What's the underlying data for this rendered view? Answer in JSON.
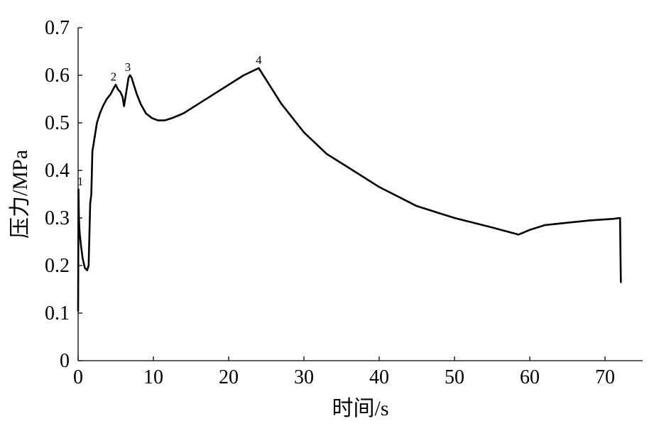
{
  "chart_data": {
    "type": "line",
    "title": "",
    "xlabel": "时间/s",
    "ylabel": "压力/MPa",
    "xlim": [
      0,
      75
    ],
    "ylim": [
      0,
      0.7
    ],
    "xticks": [
      0,
      10,
      20,
      30,
      40,
      50,
      60,
      70
    ],
    "yticks": [
      0,
      0.1,
      0.2,
      0.3,
      0.4,
      0.5,
      0.6,
      0.7
    ],
    "xtick_labels": [
      "0",
      "10",
      "20",
      "30",
      "40",
      "50",
      "60",
      "70"
    ],
    "ytick_labels": [
      "0",
      "0.1",
      "0.2",
      "0.3",
      "0.4",
      "0.5",
      "0.6",
      "0.7"
    ],
    "grid": false,
    "legend": "none",
    "line_color": "#000000",
    "series": [
      {
        "x": [
          0.0,
          0.05,
          0.1,
          0.2,
          0.4,
          0.6,
          0.9,
          1.2,
          1.4,
          1.6,
          1.75,
          1.9,
          2.0,
          2.2,
          2.5,
          2.9,
          3.3,
          3.8,
          4.3,
          4.8,
          5.0,
          5.3,
          5.6,
          5.9,
          6.1,
          6.3,
          6.5,
          6.7,
          6.9,
          7.1,
          7.4,
          7.8,
          8.3,
          9.0,
          9.8,
          10.6,
          11.5,
          12.5,
          14.0,
          16.0,
          18.0,
          20.0,
          22.0,
          24.0,
          24.2,
          25.0,
          27.0,
          30.0,
          33.0,
          36.0,
          40.0,
          45.0,
          50.0,
          55.0,
          58.5,
          60.0,
          62.0,
          65.0,
          68.0,
          71.0,
          72.0,
          72.05,
          72.1
        ],
        "y": [
          0.105,
          0.36,
          0.3,
          0.27,
          0.24,
          0.215,
          0.195,
          0.19,
          0.2,
          0.33,
          0.35,
          0.44,
          0.45,
          0.47,
          0.5,
          0.52,
          0.535,
          0.55,
          0.56,
          0.575,
          0.58,
          0.57,
          0.565,
          0.555,
          0.535,
          0.555,
          0.575,
          0.595,
          0.6,
          0.595,
          0.58,
          0.56,
          0.54,
          0.52,
          0.51,
          0.505,
          0.505,
          0.51,
          0.52,
          0.54,
          0.56,
          0.58,
          0.6,
          0.615,
          0.61,
          0.59,
          0.54,
          0.48,
          0.435,
          0.405,
          0.365,
          0.325,
          0.3,
          0.28,
          0.265,
          0.275,
          0.285,
          0.29,
          0.295,
          0.298,
          0.3,
          0.23,
          0.165
        ]
      }
    ],
    "annotations": [
      {
        "text": "1",
        "x": 0.3,
        "y": 0.36
      },
      {
        "text": "2",
        "x": 4.7,
        "y": 0.58
      },
      {
        "text": "3",
        "x": 6.6,
        "y": 0.6
      },
      {
        "text": "4",
        "x": 24.0,
        "y": 0.615
      }
    ]
  }
}
